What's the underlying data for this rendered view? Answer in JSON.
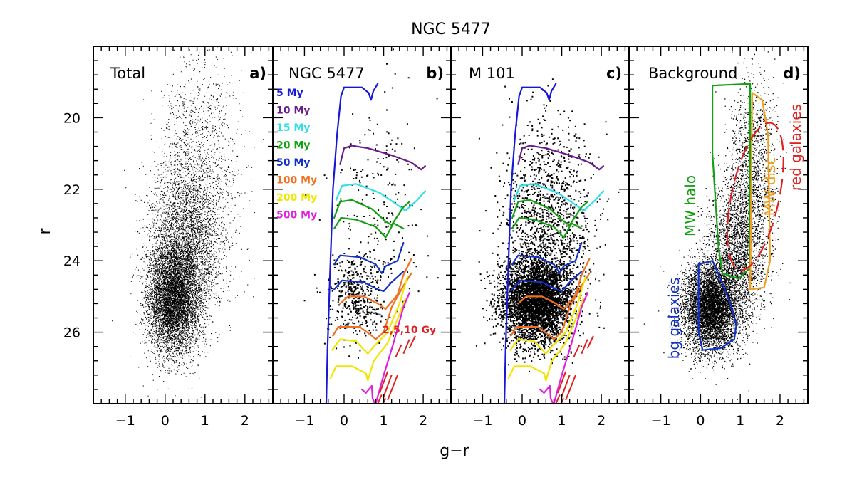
{
  "chart_data": {
    "type": "scatter",
    "title": "NGC 5477",
    "xlabel": "g−r",
    "ylabel": "r",
    "xlim": [
      -1.8,
      2.7
    ],
    "ylim": [
      28.0,
      18.0
    ],
    "y_inverted": true,
    "xticks": [
      -1,
      0,
      1,
      2
    ],
    "yticks": [
      20,
      22,
      24,
      26
    ],
    "xtick_labels": [
      "−1",
      "0",
      "1",
      "2"
    ],
    "ytick_labels": [
      "20",
      "22",
      "24",
      "26"
    ],
    "panels": [
      {
        "id": "a",
        "title": "Total",
        "label": "a)",
        "stars": "dense, ~25000 points, peak near (0.2, 25.2)"
      },
      {
        "id": "b",
        "title": "NGC 5477",
        "label": "b)",
        "stars": "sparse, ~600 points"
      },
      {
        "id": "c",
        "title": "M 101",
        "label": "c)",
        "stars": "dense, ~5000 points centered (0.4, 25.2)"
      },
      {
        "id": "d",
        "title": "Background",
        "label": "d)",
        "stars": "moderate, ~9000 points"
      }
    ],
    "isochrones": [
      {
        "label": "5 My",
        "color": "#1717d8",
        "points": [
          [
            -0.45,
            28.0
          ],
          [
            -0.42,
            26.5
          ],
          [
            -0.36,
            24.5
          ],
          [
            -0.28,
            22.0
          ],
          [
            -0.18,
            20.5
          ],
          [
            -0.08,
            19.4
          ],
          [
            0.0,
            19.15
          ],
          [
            0.45,
            19.15
          ],
          [
            0.62,
            19.3
          ],
          [
            0.68,
            19.5
          ],
          [
            0.74,
            19.25
          ],
          [
            0.85,
            19.05
          ]
        ]
      },
      {
        "label": "10 My",
        "color": "#6a1b8c",
        "points": [
          [
            -0.1,
            21.3
          ],
          [
            0.0,
            20.85
          ],
          [
            0.2,
            20.78
          ],
          [
            0.6,
            20.85
          ],
          [
            1.2,
            21.05
          ],
          [
            1.7,
            21.25
          ],
          [
            1.95,
            21.45
          ],
          [
            2.05,
            21.35
          ]
        ]
      },
      {
        "label": "15 My",
        "color": "#30e0e8",
        "points": [
          [
            -0.2,
            22.3
          ],
          [
            -0.05,
            21.9
          ],
          [
            0.3,
            21.85
          ],
          [
            0.9,
            22.1
          ],
          [
            1.3,
            22.4
          ],
          [
            1.55,
            22.6
          ],
          [
            1.85,
            22.3
          ],
          [
            2.05,
            22.05
          ]
        ]
      },
      {
        "label": "20 My",
        "color": "#10a010",
        "points": [
          [
            -0.25,
            22.8
          ],
          [
            -0.1,
            22.35
          ],
          [
            0.2,
            22.3
          ],
          [
            0.7,
            22.55
          ],
          [
            1.05,
            22.9
          ],
          [
            1.2,
            23.0
          ],
          [
            1.5,
            22.5
          ],
          [
            1.65,
            22.35
          ]
        ]
      },
      {
        "label": "20 My (2)",
        "color": "#10a010",
        "points": [
          [
            -0.25,
            23.1
          ],
          [
            -0.08,
            22.8
          ],
          [
            0.3,
            22.85
          ],
          [
            0.8,
            23.05
          ],
          [
            1.05,
            23.35
          ],
          [
            1.25,
            22.95
          ],
          [
            1.5,
            23.1
          ]
        ]
      },
      {
        "label": "50 My",
        "color": "#1030c8",
        "points": [
          [
            -0.25,
            24.1
          ],
          [
            -0.1,
            23.85
          ],
          [
            0.4,
            23.9
          ],
          [
            0.8,
            24.1
          ],
          [
            0.95,
            24.35
          ],
          [
            1.05,
            24.15
          ],
          [
            1.35,
            24.0
          ],
          [
            1.5,
            23.5
          ]
        ]
      },
      {
        "label": "50 My (2)",
        "color": "#1030c8",
        "points": [
          [
            -0.25,
            24.8
          ],
          [
            -0.05,
            24.55
          ],
          [
            0.5,
            24.6
          ],
          [
            0.85,
            24.8
          ],
          [
            1.0,
            24.85
          ],
          [
            1.2,
            24.6
          ],
          [
            1.5,
            24.3
          ]
        ]
      },
      {
        "label": "100 My",
        "color": "#f07020",
        "points": [
          [
            -0.1,
            25.2
          ],
          [
            0.1,
            25.0
          ],
          [
            0.5,
            25.0
          ],
          [
            0.85,
            25.2
          ],
          [
            1.05,
            25.35
          ],
          [
            1.35,
            24.95
          ],
          [
            1.5,
            24.4
          ],
          [
            1.7,
            23.95
          ]
        ]
      },
      {
        "label": "100 My (2)",
        "color": "#f07020",
        "points": [
          [
            -0.28,
            26.1
          ],
          [
            -0.15,
            25.85
          ],
          [
            0.4,
            25.85
          ],
          [
            0.7,
            26.1
          ],
          [
            0.8,
            26.2
          ],
          [
            1.0,
            26.0
          ],
          [
            1.2,
            25.3
          ],
          [
            1.5,
            24.7
          ],
          [
            1.7,
            24.35
          ]
        ]
      },
      {
        "label": "200 My",
        "color": "#f0e600",
        "points": [
          [
            -0.3,
            26.5
          ],
          [
            -0.1,
            26.2
          ],
          [
            0.3,
            26.25
          ],
          [
            0.6,
            26.6
          ],
          [
            0.75,
            26.4
          ],
          [
            1.1,
            26.0
          ],
          [
            1.4,
            25.2
          ],
          [
            1.6,
            24.45
          ]
        ]
      },
      {
        "label": "200 My (2)",
        "color": "#f0e600",
        "points": [
          [
            -0.35,
            27.3
          ],
          [
            -0.2,
            26.95
          ],
          [
            0.2,
            26.95
          ],
          [
            0.55,
            27.15
          ],
          [
            0.6,
            27.35
          ],
          [
            0.75,
            26.8
          ],
          [
            1.1,
            26.3
          ],
          [
            1.4,
            25.5
          ],
          [
            1.55,
            25.05
          ]
        ]
      },
      {
        "label": "500 My",
        "color": "#e020e0",
        "points": [
          [
            0.45,
            27.6
          ],
          [
            0.55,
            27.7
          ],
          [
            0.7,
            27.5
          ],
          [
            0.72,
            27.85
          ],
          [
            0.78,
            28.0
          ]
        ]
      },
      {
        "label": "500 My (2)",
        "color": "#e020e0",
        "points": [
          [
            0.8,
            28.0
          ],
          [
            1.0,
            27.2
          ],
          [
            1.25,
            26.3
          ],
          [
            1.5,
            25.3
          ],
          [
            1.65,
            24.9
          ]
        ]
      }
    ],
    "old_isochrones": {
      "label": "2,5,10 Gy",
      "color": "#e02020",
      "style": "dashed"
    },
    "regions_panel_d": [
      {
        "label": "MW halo",
        "color": "#10a010",
        "points": [
          [
            0.3,
            19.1
          ],
          [
            1.25,
            19.05
          ],
          [
            1.25,
            24.2
          ],
          [
            0.95,
            24.5
          ],
          [
            0.55,
            24.35
          ],
          [
            0.45,
            23.6
          ],
          [
            0.3,
            21.0
          ]
        ]
      },
      {
        "label": "MW disc",
        "color": "#f0a020",
        "points": [
          [
            1.3,
            19.3
          ],
          [
            1.55,
            19.5
          ],
          [
            1.7,
            20.5
          ],
          [
            1.75,
            24.0
          ],
          [
            1.6,
            24.75
          ],
          [
            1.25,
            24.8
          ]
        ]
      },
      {
        "label": "red galaxies",
        "color": "#e02020",
        "style": "dashed",
        "ellipse": {
          "cx": 1.38,
          "cy": 22.2,
          "rx": 0.6,
          "ry": 2.1
        }
      },
      {
        "label": "bg galaxies",
        "color": "#1030c8",
        "points": [
          [
            -0.05,
            24.1
          ],
          [
            0.3,
            24.0
          ],
          [
            0.5,
            24.5
          ],
          [
            0.75,
            25.2
          ],
          [
            0.9,
            25.8
          ],
          [
            0.85,
            26.2
          ],
          [
            0.5,
            26.45
          ],
          [
            0.05,
            26.5
          ],
          [
            -0.05,
            26.0
          ]
        ]
      }
    ],
    "legend": [
      "5 My",
      "10 My",
      "15 My",
      "20 My",
      "50 My",
      "100 My",
      "200 My",
      "500 My"
    ],
    "annotation_panel_b": "2,5,10 Gy"
  },
  "legend_colors": [
    "#1717d8",
    "#6a1b8c",
    "#30e0e8",
    "#10a010",
    "#1030c8",
    "#f07020",
    "#f0e600",
    "#e020e0"
  ],
  "colors": {
    "old_isochrones": "#e02020"
  }
}
